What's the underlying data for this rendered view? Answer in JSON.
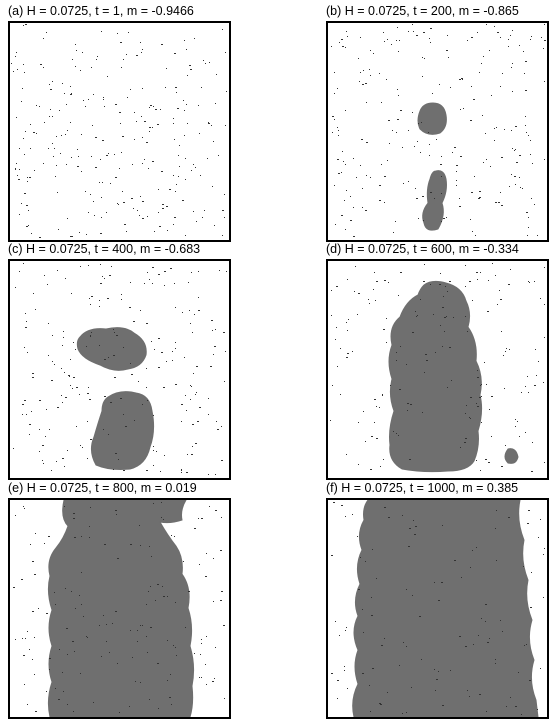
{
  "figure": {
    "panels": [
      {
        "id": "a",
        "caption": "(a)  H = 0.0725, t = 1, m = -0.9466"
      },
      {
        "id": "b",
        "caption": "(b)  H = 0.0725, t = 200, m = -0.865"
      },
      {
        "id": "c",
        "caption": "(c)  H = 0.0725, t = 400, m = -0.683"
      },
      {
        "id": "d",
        "caption": "(d)  H = 0.0725, t = 600, m = -0.334"
      },
      {
        "id": "e",
        "caption": "(e)  H = 0.0725, t = 800, m = 0.019"
      },
      {
        "id": "f",
        "caption": "(f)  H = 0.0725, t = 1000, m = 0.385"
      }
    ],
    "colors": {
      "cluster": "#6f6f6f",
      "spin_dot": "#333333",
      "frame": "#000000",
      "background": "#ffffff"
    }
  }
}
